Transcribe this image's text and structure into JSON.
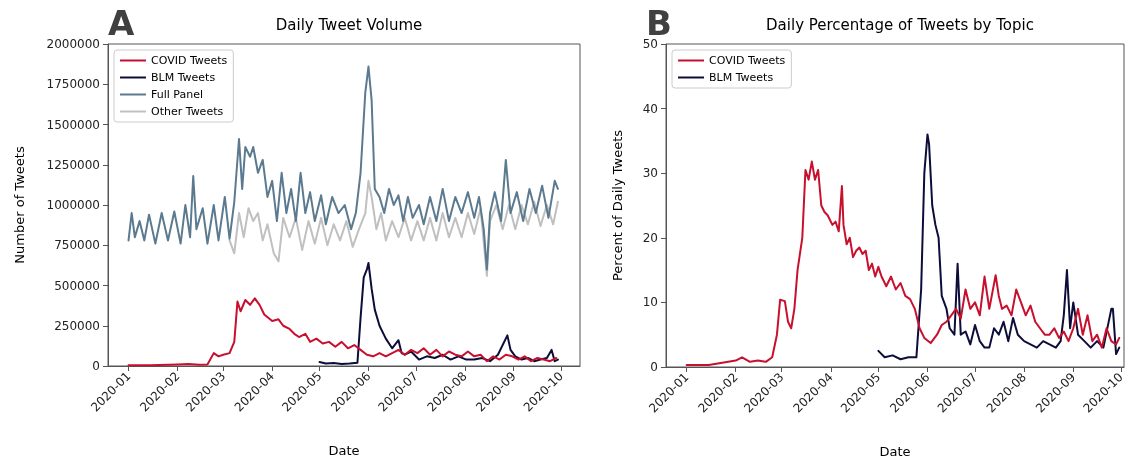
{
  "chart_data": [
    {
      "type": "line",
      "title": "Daily Tweet Volume",
      "xlabel": "Date",
      "ylabel": "Number of Tweets",
      "annotations": [
        "A"
      ],
      "xlim": [
        "2019-12-19",
        "2020-10-13"
      ],
      "xticks": [
        "2020-01",
        "2020-02",
        "2020-03",
        "2020-04",
        "2020-05",
        "2020-06",
        "2020-07",
        "2020-08",
        "2020-09",
        "2020-10"
      ],
      "ylim": [
        0,
        2000000
      ],
      "yticks": [
        0,
        250000,
        500000,
        750000,
        1000000,
        1250000,
        1500000,
        1750000,
        2000000
      ],
      "grid": false,
      "legend": "top left",
      "marker": "none",
      "line_style": "solid",
      "series": [
        {
          "name": "COVID Tweets",
          "color": "#c8102e",
          "x": [
            "2020-01-01",
            "2020-01-15",
            "2020-02-01",
            "2020-02-08",
            "2020-02-15",
            "2020-02-20",
            "2020-02-24",
            "2020-02-27",
            "2020-03-01",
            "2020-03-05",
            "2020-03-08",
            "2020-03-10",
            "2020-03-12",
            "2020-03-15",
            "2020-03-18",
            "2020-03-21",
            "2020-03-24",
            "2020-03-27",
            "2020-04-01",
            "2020-04-05",
            "2020-04-08",
            "2020-04-12",
            "2020-04-15",
            "2020-04-18",
            "2020-04-22",
            "2020-04-25",
            "2020-04-29",
            "2020-05-03",
            "2020-05-07",
            "2020-05-11",
            "2020-05-15",
            "2020-05-19",
            "2020-05-23",
            "2020-05-27",
            "2020-05-31",
            "2020-06-04",
            "2020-06-08",
            "2020-06-12",
            "2020-06-16",
            "2020-06-20",
            "2020-06-24",
            "2020-06-28",
            "2020-07-02",
            "2020-07-06",
            "2020-07-10",
            "2020-07-14",
            "2020-07-18",
            "2020-07-22",
            "2020-07-26",
            "2020-07-30",
            "2020-08-03",
            "2020-08-07",
            "2020-08-11",
            "2020-08-15",
            "2020-08-19",
            "2020-08-23",
            "2020-08-27",
            "2020-08-31",
            "2020-09-04",
            "2020-09-08",
            "2020-09-12",
            "2020-09-16",
            "2020-09-20",
            "2020-09-24",
            "2020-09-28"
          ],
          "values": [
            5000,
            5000,
            10000,
            12000,
            8000,
            10000,
            80000,
            60000,
            70000,
            80000,
            150000,
            400000,
            340000,
            410000,
            380000,
            420000,
            380000,
            320000,
            280000,
            290000,
            250000,
            230000,
            200000,
            180000,
            200000,
            150000,
            170000,
            140000,
            150000,
            120000,
            150000,
            110000,
            130000,
            100000,
            70000,
            60000,
            80000,
            60000,
            80000,
            100000,
            70000,
            100000,
            80000,
            110000,
            70000,
            100000,
            60000,
            90000,
            70000,
            60000,
            90000,
            60000,
            70000,
            30000,
            60000,
            40000,
            70000,
            60000,
            40000,
            60000,
            30000,
            50000,
            40000,
            30000,
            50000
          ]
        },
        {
          "name": "BLM Tweets",
          "color": "#0d0d3a",
          "x": [
            "2020-05-01",
            "2020-05-05",
            "2020-05-10",
            "2020-05-15",
            "2020-05-20",
            "2020-05-25",
            "2020-05-27",
            "2020-05-29",
            "2020-05-31",
            "2020-06-01",
            "2020-06-03",
            "2020-06-05",
            "2020-06-08",
            "2020-06-12",
            "2020-06-16",
            "2020-06-20",
            "2020-06-22",
            "2020-06-24",
            "2020-06-28",
            "2020-07-03",
            "2020-07-08",
            "2020-07-13",
            "2020-07-18",
            "2020-07-23",
            "2020-07-28",
            "2020-08-02",
            "2020-08-07",
            "2020-08-12",
            "2020-08-17",
            "2020-08-22",
            "2020-08-28",
            "2020-08-30",
            "2020-09-02",
            "2020-09-06",
            "2020-09-10",
            "2020-09-14",
            "2020-09-18",
            "2020-09-22",
            "2020-09-25",
            "2020-09-27",
            "2020-09-29"
          ],
          "values": [
            25000,
            15000,
            18000,
            12000,
            15000,
            20000,
            300000,
            550000,
            600000,
            640000,
            480000,
            350000,
            250000,
            170000,
            110000,
            160000,
            80000,
            70000,
            90000,
            40000,
            60000,
            50000,
            70000,
            40000,
            60000,
            40000,
            40000,
            50000,
            30000,
            70000,
            190000,
            100000,
            60000,
            40000,
            50000,
            30000,
            40000,
            50000,
            100000,
            30000,
            40000
          ]
        },
        {
          "name": "Full Panel",
          "color": "#5b7a90",
          "x": [
            "2020-01-01",
            "2020-01-03",
            "2020-01-05",
            "2020-01-08",
            "2020-01-11",
            "2020-01-14",
            "2020-01-18",
            "2020-01-22",
            "2020-01-26",
            "2020-01-30",
            "2020-02-03",
            "2020-02-06",
            "2020-02-09",
            "2020-02-11",
            "2020-02-13",
            "2020-02-17",
            "2020-02-20",
            "2020-02-24",
            "2020-02-27",
            "2020-03-02",
            "2020-03-05",
            "2020-03-08",
            "2020-03-11",
            "2020-03-13",
            "2020-03-15",
            "2020-03-18",
            "2020-03-20",
            "2020-03-23",
            "2020-03-26",
            "2020-03-29",
            "2020-04-01",
            "2020-04-04",
            "2020-04-07",
            "2020-04-10",
            "2020-04-13",
            "2020-04-16",
            "2020-04-19",
            "2020-04-22",
            "2020-04-25",
            "2020-04-28",
            "2020-05-02",
            "2020-05-05",
            "2020-05-09",
            "2020-05-13",
            "2020-05-17",
            "2020-05-21",
            "2020-05-24",
            "2020-05-27",
            "2020-05-30",
            "2020-06-01",
            "2020-06-03",
            "2020-06-05",
            "2020-06-08",
            "2020-06-11",
            "2020-06-14",
            "2020-06-17",
            "2020-06-20",
            "2020-06-23",
            "2020-06-26",
            "2020-06-29",
            "2020-07-03",
            "2020-07-06",
            "2020-07-10",
            "2020-07-14",
            "2020-07-18",
            "2020-07-22",
            "2020-07-26",
            "2020-07-30",
            "2020-08-03",
            "2020-08-07",
            "2020-08-10",
            "2020-08-13",
            "2020-08-15",
            "2020-08-17",
            "2020-08-20",
            "2020-08-24",
            "2020-08-27",
            "2020-08-30",
            "2020-09-03",
            "2020-09-07",
            "2020-09-11",
            "2020-09-15",
            "2020-09-19",
            "2020-09-23",
            "2020-09-27",
            "2020-09-29"
          ],
          "values": [
            780000,
            950000,
            800000,
            900000,
            780000,
            940000,
            760000,
            950000,
            780000,
            960000,
            760000,
            1000000,
            800000,
            1180000,
            850000,
            980000,
            760000,
            1000000,
            780000,
            1050000,
            790000,
            1020000,
            1410000,
            1100000,
            1360000,
            1300000,
            1360000,
            1200000,
            1280000,
            1050000,
            1150000,
            900000,
            1200000,
            950000,
            1100000,
            900000,
            1200000,
            950000,
            1080000,
            900000,
            1060000,
            880000,
            1050000,
            950000,
            1000000,
            850000,
            950000,
            1200000,
            1700000,
            1860000,
            1650000,
            1100000,
            1050000,
            950000,
            1100000,
            1000000,
            1060000,
            900000,
            1050000,
            920000,
            1000000,
            880000,
            1050000,
            900000,
            1100000,
            900000,
            1050000,
            950000,
            1080000,
            920000,
            1050000,
            850000,
            600000,
            950000,
            1080000,
            900000,
            1280000,
            950000,
            1080000,
            900000,
            1100000,
            950000,
            1120000,
            920000,
            1150000,
            1100000
          ]
        },
        {
          "name": "Other Tweets",
          "color": "#c0c0c0",
          "x": [
            "2020-03-05",
            "2020-03-08",
            "2020-03-11",
            "2020-03-14",
            "2020-03-17",
            "2020-03-20",
            "2020-03-23",
            "2020-03-26",
            "2020-03-29",
            "2020-04-02",
            "2020-04-05",
            "2020-04-08",
            "2020-04-12",
            "2020-04-16",
            "2020-04-20",
            "2020-04-24",
            "2020-04-28",
            "2020-05-02",
            "2020-05-06",
            "2020-05-10",
            "2020-05-14",
            "2020-05-18",
            "2020-05-22",
            "2020-05-26",
            "2020-05-30",
            "2020-06-01",
            "2020-06-03",
            "2020-06-06",
            "2020-06-09",
            "2020-06-12",
            "2020-06-16",
            "2020-06-20",
            "2020-06-24",
            "2020-06-28",
            "2020-07-02",
            "2020-07-06",
            "2020-07-10",
            "2020-07-14",
            "2020-07-18",
            "2020-07-22",
            "2020-07-26",
            "2020-07-30",
            "2020-08-03",
            "2020-08-07",
            "2020-08-11",
            "2020-08-15",
            "2020-08-17",
            "2020-08-21",
            "2020-08-25",
            "2020-08-29",
            "2020-09-02",
            "2020-09-06",
            "2020-09-10",
            "2020-09-14",
            "2020-09-18",
            "2020-09-22",
            "2020-09-26",
            "2020-09-29"
          ],
          "values": [
            780000,
            700000,
            950000,
            800000,
            980000,
            900000,
            950000,
            780000,
            880000,
            700000,
            650000,
            920000,
            800000,
            920000,
            720000,
            900000,
            760000,
            920000,
            750000,
            880000,
            780000,
            900000,
            740000,
            850000,
            950000,
            1150000,
            1050000,
            850000,
            950000,
            780000,
            900000,
            800000,
            920000,
            780000,
            900000,
            780000,
            920000,
            780000,
            950000,
            800000,
            920000,
            800000,
            950000,
            820000,
            980000,
            560000,
            900000,
            1000000,
            850000,
            1000000,
            850000,
            1000000,
            880000,
            1020000,
            870000,
            1000000,
            880000,
            1020000
          ]
        }
      ]
    },
    {
      "type": "line",
      "title": "Daily Percentage of Tweets by Topic",
      "xlabel": "Date",
      "ylabel": "Percent of Daily Tweets",
      "annotations": [
        "B"
      ],
      "xlim": [
        "2019-12-19",
        "2020-10-03"
      ],
      "xticks": [
        "2020-01",
        "2020-02",
        "2020-03",
        "2020-04",
        "2020-05",
        "2020-06",
        "2020-07",
        "2020-08",
        "2020-09",
        "2020-10"
      ],
      "ylim": [
        0,
        50
      ],
      "yticks": [
        0,
        10,
        20,
        30,
        40,
        50
      ],
      "grid": false,
      "legend": "top left",
      "marker": "none",
      "line_style": "solid",
      "series": [
        {
          "name": "COVID Tweets",
          "color": "#c8102e",
          "x": [
            "2020-01-01",
            "2020-01-15",
            "2020-02-01",
            "2020-02-05",
            "2020-02-10",
            "2020-02-15",
            "2020-02-20",
            "2020-02-24",
            "2020-02-27",
            "2020-02-29",
            "2020-03-03",
            "2020-03-05",
            "2020-03-07",
            "2020-03-09",
            "2020-03-11",
            "2020-03-14",
            "2020-03-16",
            "2020-03-18",
            "2020-03-20",
            "2020-03-22",
            "2020-03-24",
            "2020-03-26",
            "2020-03-28",
            "2020-03-30",
            "2020-04-02",
            "2020-04-04",
            "2020-04-06",
            "2020-04-08",
            "2020-04-09",
            "2020-04-11",
            "2020-04-13",
            "2020-04-15",
            "2020-04-17",
            "2020-04-19",
            "2020-04-21",
            "2020-04-23",
            "2020-04-25",
            "2020-04-27",
            "2020-04-29",
            "2020-05-01",
            "2020-05-03",
            "2020-05-06",
            "2020-05-09",
            "2020-05-12",
            "2020-05-15",
            "2020-05-18",
            "2020-05-21",
            "2020-05-24",
            "2020-05-27",
            "2020-05-30",
            "2020-06-03",
            "2020-06-07",
            "2020-06-10",
            "2020-06-13",
            "2020-06-16",
            "2020-06-19",
            "2020-06-22",
            "2020-06-25",
            "2020-06-28",
            "2020-07-01",
            "2020-07-04",
            "2020-07-07",
            "2020-07-10",
            "2020-07-14",
            "2020-07-16",
            "2020-07-18",
            "2020-07-21",
            "2020-07-24",
            "2020-07-27",
            "2020-07-30",
            "2020-08-02",
            "2020-08-05",
            "2020-08-08",
            "2020-08-11",
            "2020-08-14",
            "2020-08-17",
            "2020-08-20",
            "2020-08-23",
            "2020-08-26",
            "2020-08-29",
            "2020-09-01",
            "2020-09-04",
            "2020-09-07",
            "2020-09-10",
            "2020-09-13",
            "2020-09-16",
            "2020-09-19",
            "2020-09-22",
            "2020-09-25",
            "2020-09-28",
            "2020-09-30"
          ],
          "values": [
            0.3,
            0.3,
            1.0,
            1.5,
            0.8,
            1.0,
            0.8,
            1.5,
            5,
            10.4,
            10.2,
            7,
            6,
            9,
            15,
            20,
            30.5,
            29,
            31.8,
            29,
            30.5,
            25,
            24,
            23.5,
            22,
            22.5,
            21,
            28,
            22,
            19,
            20,
            17,
            18,
            18.5,
            17.5,
            18,
            15,
            16,
            14,
            15.5,
            14,
            12.5,
            14,
            12,
            13,
            11,
            10.5,
            9,
            6,
            4.5,
            3.7,
            5,
            6.5,
            7,
            8,
            9,
            7.5,
            12,
            9,
            10,
            8,
            14,
            9,
            14.2,
            11,
            9,
            9.5,
            8,
            12,
            10,
            8,
            9.5,
            7,
            6,
            5,
            5,
            6,
            4.5,
            5.5,
            4,
            6,
            9,
            5,
            8,
            4,
            5,
            3,
            6,
            4,
            3.5,
            4.5
          ]
        },
        {
          "name": "BLM Tweets",
          "color": "#0d0d3a",
          "x": [
            "2020-05-01",
            "2020-05-05",
            "2020-05-10",
            "2020-05-15",
            "2020-05-20",
            "2020-05-25",
            "2020-05-28",
            "2020-05-30",
            "2020-06-01",
            "2020-06-02",
            "2020-06-04",
            "2020-06-06",
            "2020-06-08",
            "2020-06-10",
            "2020-06-13",
            "2020-06-15",
            "2020-06-18",
            "2020-06-20",
            "2020-06-22",
            "2020-06-25",
            "2020-06-28",
            "2020-07-01",
            "2020-07-04",
            "2020-07-07",
            "2020-07-10",
            "2020-07-13",
            "2020-07-16",
            "2020-07-19",
            "2020-07-22",
            "2020-07-25",
            "2020-07-28",
            "2020-08-01",
            "2020-08-05",
            "2020-08-09",
            "2020-08-13",
            "2020-08-17",
            "2020-08-21",
            "2020-08-24",
            "2020-08-26",
            "2020-08-28",
            "2020-08-30",
            "2020-09-01",
            "2020-09-04",
            "2020-09-08",
            "2020-09-12",
            "2020-09-16",
            "2020-09-20",
            "2020-09-25",
            "2020-09-26",
            "2020-09-28",
            "2020-09-30"
          ],
          "values": [
            2.5,
            1.5,
            1.8,
            1.2,
            1.5,
            1.5,
            12,
            30,
            36,
            34.5,
            25,
            22,
            20,
            11,
            9,
            6,
            5,
            16,
            5,
            5.5,
            3.5,
            6.5,
            4,
            3,
            3,
            6,
            5,
            7,
            4,
            7.6,
            5,
            4,
            3.5,
            3,
            4,
            3.5,
            3,
            4,
            8,
            15,
            6,
            10,
            5,
            4,
            3,
            4,
            3,
            9,
            9,
            2,
            3
          ]
        }
      ]
    }
  ]
}
